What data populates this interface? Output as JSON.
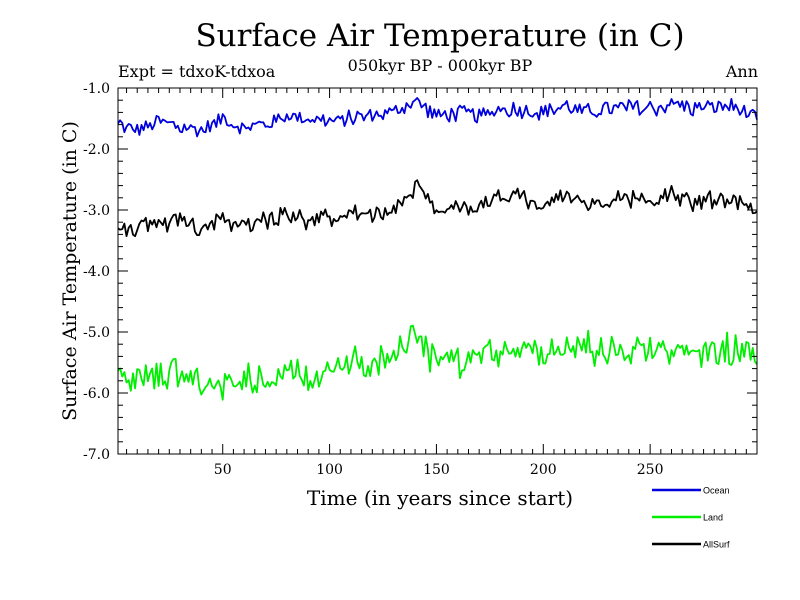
{
  "header": {
    "title": "Surface Air Temperature (in C)",
    "subtitle": "050kyr BP - 000kyr BP",
    "experiment": "Expt = tdxoK-tdxoa",
    "season": "Ann"
  },
  "chart_data": {
    "type": "line",
    "title": "Surface Air Temperature (in C)",
    "subtitle": "050kyr BP - 000kyr BP",
    "xlabel": "Time (in years since start)",
    "ylabel": "Surface Air Temperature (in C)",
    "xlim": [
      1,
      300
    ],
    "ylim": [
      -7.0,
      -1.0
    ],
    "x_ticks": [
      50,
      100,
      150,
      200,
      250
    ],
    "x_tick_labels": [
      "50",
      "100",
      "150",
      "200",
      "250"
    ],
    "y_ticks": [
      -1.0,
      -2.0,
      -3.0,
      -4.0,
      -5.0,
      -6.0,
      -7.0
    ],
    "y_tick_labels": [
      "-1.0",
      "-2.0",
      "-3.0",
      "-4.0",
      "-5.0",
      "-6.0",
      "-7.0"
    ],
    "grid": false,
    "legend_position": "bottom-right, below plot",
    "series": [
      {
        "name": "Ocean",
        "color": "#0000dd",
        "x": [
          1,
          10,
          20,
          30,
          40,
          50,
          60,
          70,
          80,
          90,
          100,
          110,
          120,
          130,
          140,
          150,
          160,
          170,
          180,
          190,
          200,
          210,
          220,
          230,
          240,
          250,
          260,
          270,
          280,
          290,
          300
        ],
        "values": [
          -1.6,
          -1.7,
          -1.55,
          -1.65,
          -1.7,
          -1.5,
          -1.65,
          -1.6,
          -1.45,
          -1.5,
          -1.55,
          -1.5,
          -1.45,
          -1.4,
          -1.2,
          -1.45,
          -1.4,
          -1.45,
          -1.35,
          -1.35,
          -1.4,
          -1.3,
          -1.4,
          -1.35,
          -1.3,
          -1.35,
          -1.25,
          -1.35,
          -1.3,
          -1.3,
          -1.55
        ]
      },
      {
        "name": "Land",
        "color": "#00ee00",
        "x": [
          1,
          10,
          20,
          30,
          40,
          50,
          60,
          70,
          80,
          90,
          100,
          110,
          120,
          130,
          140,
          150,
          160,
          170,
          180,
          190,
          200,
          210,
          220,
          230,
          240,
          250,
          260,
          270,
          280,
          290,
          300
        ],
        "values": [
          -5.7,
          -5.8,
          -5.7,
          -5.65,
          -5.9,
          -5.8,
          -5.7,
          -5.75,
          -5.55,
          -5.8,
          -5.6,
          -5.5,
          -5.6,
          -5.35,
          -5.0,
          -5.5,
          -5.45,
          -5.45,
          -5.25,
          -5.3,
          -5.35,
          -5.2,
          -5.3,
          -5.25,
          -5.3,
          -5.3,
          -5.2,
          -5.35,
          -5.3,
          -5.3,
          -5.4
        ]
      },
      {
        "name": "AllSurf",
        "color": "#000000",
        "x": [
          1,
          10,
          20,
          30,
          40,
          50,
          60,
          70,
          80,
          90,
          100,
          110,
          120,
          130,
          140,
          150,
          160,
          170,
          180,
          190,
          200,
          210,
          220,
          230,
          240,
          250,
          260,
          270,
          280,
          290,
          300
        ],
        "values": [
          -3.25,
          -3.35,
          -3.15,
          -3.2,
          -3.3,
          -3.15,
          -3.3,
          -3.2,
          -3.0,
          -3.25,
          -3.1,
          -3.05,
          -3.1,
          -2.95,
          -2.6,
          -3.0,
          -2.95,
          -2.95,
          -2.8,
          -2.85,
          -2.95,
          -2.8,
          -2.9,
          -2.85,
          -2.8,
          -2.85,
          -2.75,
          -2.9,
          -2.85,
          -2.85,
          -3.05
        ]
      }
    ]
  }
}
